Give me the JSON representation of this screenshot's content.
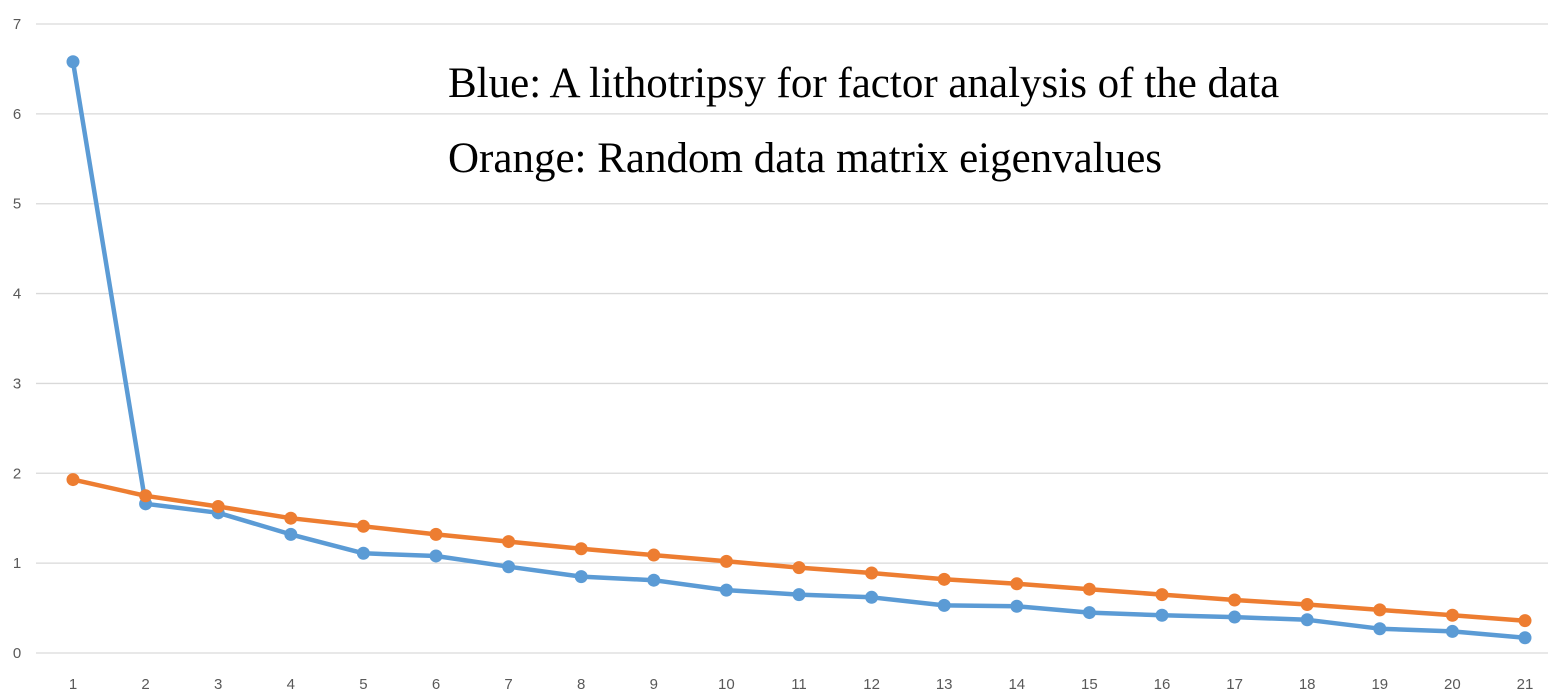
{
  "chart_data": {
    "type": "line",
    "title": "",
    "xlabel": "",
    "ylabel": "",
    "x": [
      1,
      2,
      3,
      4,
      5,
      6,
      7,
      8,
      9,
      10,
      11,
      12,
      13,
      14,
      15,
      16,
      17,
      18,
      19,
      20,
      21
    ],
    "ylim": [
      0,
      7
    ],
    "y_ticks": [
      "0",
      "1",
      "2",
      "3",
      "4",
      "5",
      "6",
      "7"
    ],
    "x_ticks": [
      "1",
      "2",
      "3",
      "4",
      "5",
      "6",
      "7",
      "8",
      "9",
      "10",
      "11",
      "12",
      "13",
      "14",
      "15",
      "16",
      "17",
      "18",
      "19",
      "20",
      "21"
    ],
    "grid": true,
    "series": [
      {
        "color": "#5b9bd5",
        "values": [
          6.58,
          1.66,
          1.56,
          1.32,
          1.11,
          1.08,
          0.96,
          0.85,
          0.81,
          0.7,
          0.65,
          0.62,
          0.53,
          0.52,
          0.45,
          0.42,
          0.4,
          0.37,
          0.27,
          0.24,
          0.17
        ]
      },
      {
        "color": "#ed7d31",
        "values": [
          1.93,
          1.75,
          1.63,
          1.5,
          1.41,
          1.32,
          1.24,
          1.16,
          1.09,
          1.02,
          0.95,
          0.89,
          0.82,
          0.77,
          0.71,
          0.65,
          0.59,
          0.54,
          0.48,
          0.42,
          0.36
        ]
      }
    ],
    "annotations": [
      "Blue: A lithotripsy for factor analysis of the data",
      "Orange: Random data matrix eigenvalues"
    ]
  }
}
